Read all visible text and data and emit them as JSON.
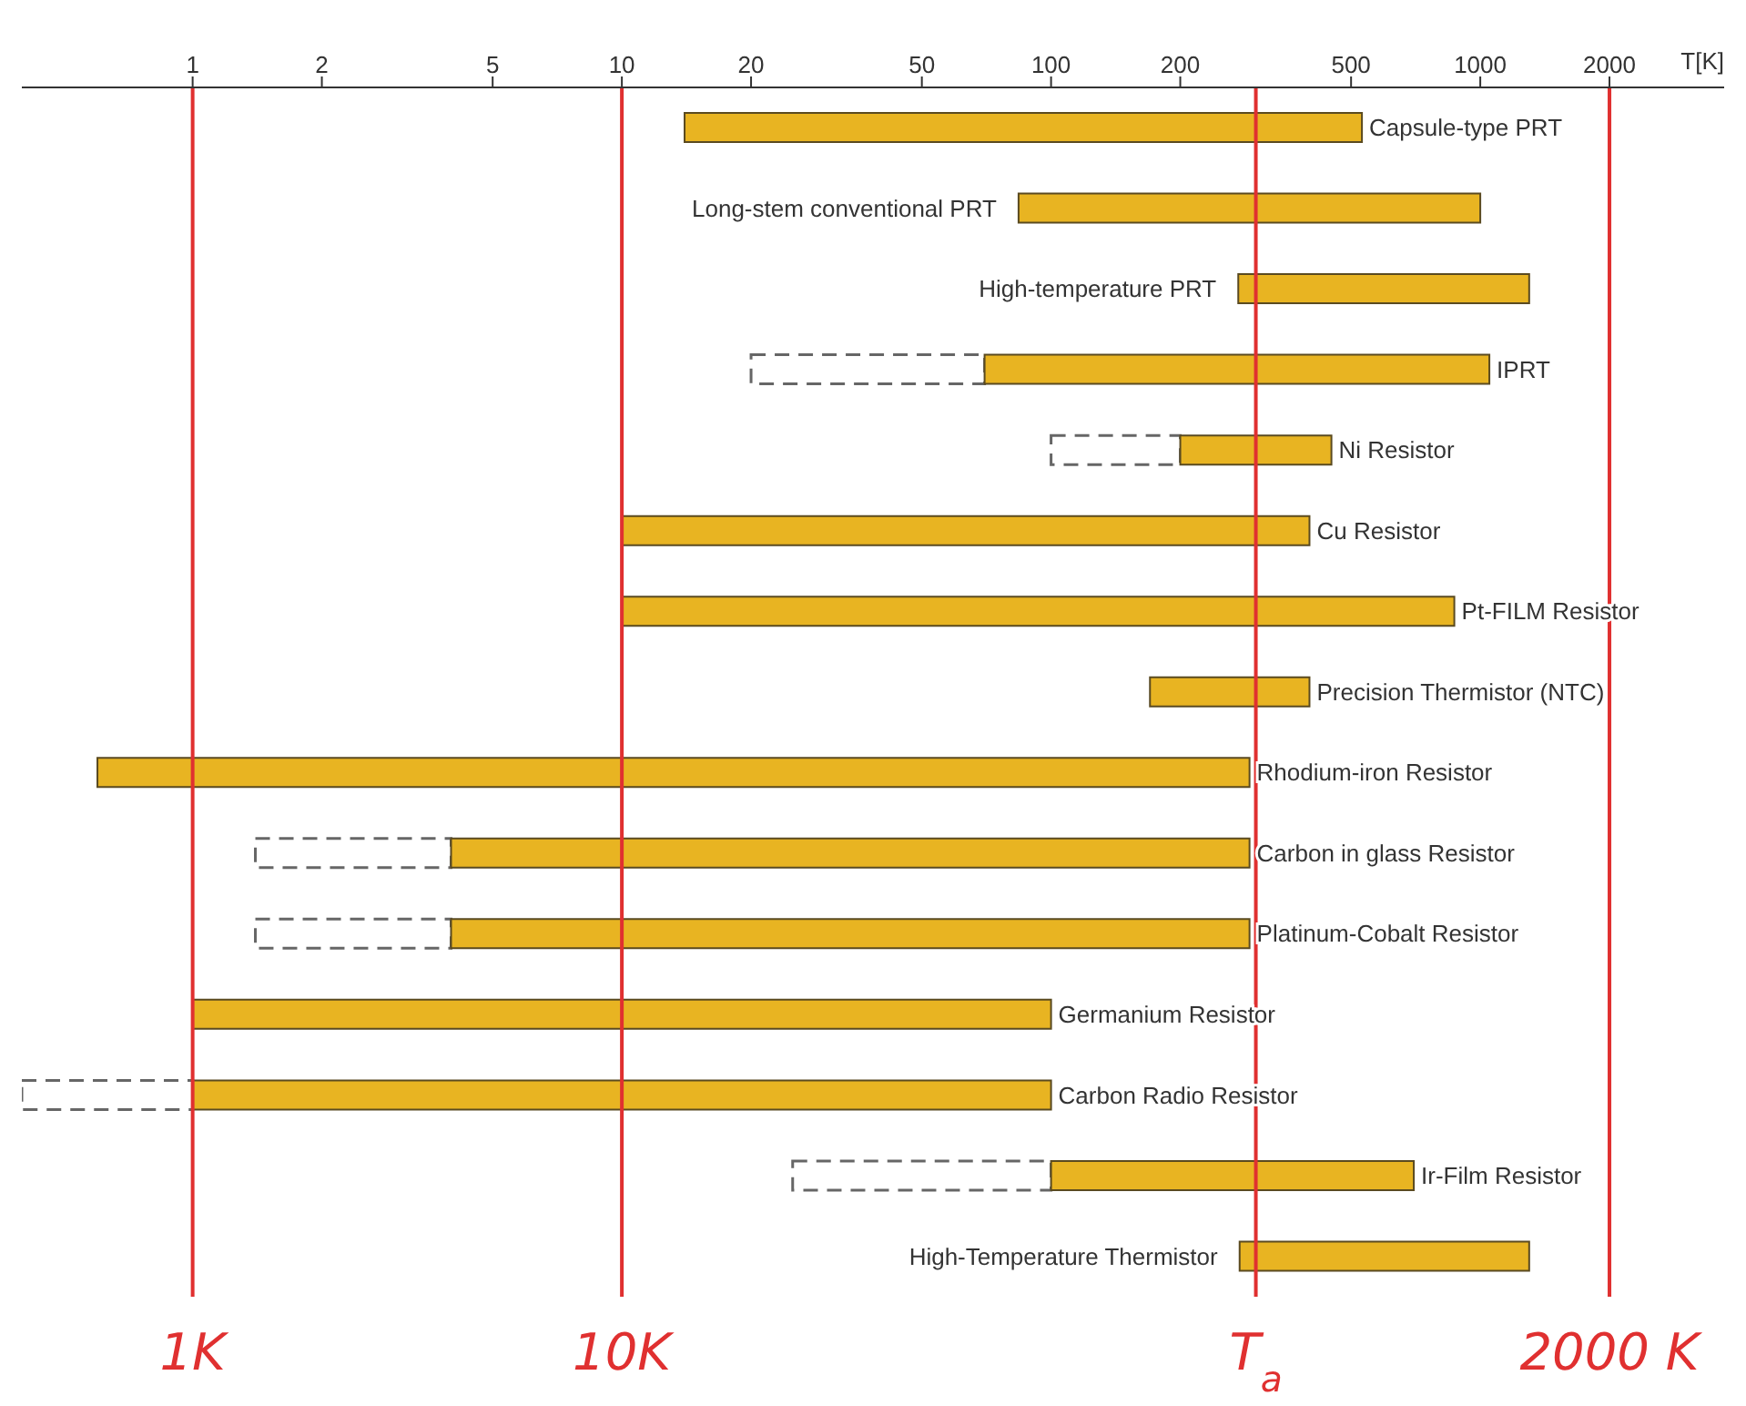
{
  "chart_data": {
    "type": "bar",
    "orientation": "horizontal",
    "log": "x",
    "xlabel": "T[K]",
    "categories": [
      "Capsule-type PRT",
      "Long-stem conventional PRT",
      "High-temperature PRT",
      "IPRT",
      "Ni Resistor",
      "Cu Resistor",
      "Pt-FILM Resistor",
      "Precision Thermistor (NTC)",
      "Rhodium-iron Resistor",
      "Carbon in glass Resistor",
      "Platinum-Cobalt Resistor",
      "Germanium Resistor",
      "Carbon Radio Resistor",
      "Ir-Film Resistor",
      "High-Temperature Thermistor"
    ],
    "series": [
      {
        "color": "#666666",
        "line_style": "dashed",
        "base": [
          null,
          null,
          null,
          20,
          100,
          null,
          null,
          null,
          null,
          1.4,
          1.4,
          null,
          0.4,
          25,
          null
        ],
        "values": [
          null,
          null,
          null,
          50,
          100,
          null,
          null,
          null,
          null,
          2.6,
          2.6,
          null,
          0.6,
          75,
          null
        ]
      },
      {
        "color": "#e8b422",
        "line_style": "solid",
        "base": [
          14,
          84,
          273,
          70,
          200,
          10,
          10,
          170,
          0.6,
          4,
          4,
          1,
          1,
          100,
          275
        ],
        "values": [
          516,
          916,
          1027,
          980,
          250,
          390,
          860,
          230,
          289.4,
          286,
          286,
          99,
          99,
          600,
          1025
        ]
      }
    ],
    "xlim": [
      0.4,
      3700
    ],
    "xticks": [
      1,
      2,
      5,
      10,
      20,
      50,
      100,
      200,
      500,
      1000,
      2000
    ],
    "ref_lines": [
      {
        "axis": "x",
        "value": 1,
        "label": "1K",
        "color": "#e03030"
      },
      {
        "axis": "x",
        "value": 10,
        "label": "10K",
        "color": "#e03030"
      },
      {
        "axis": "x",
        "value": 300,
        "label": "T$_{a}$",
        "color": "#e03030"
      },
      {
        "axis": "x",
        "value": 2000,
        "label": "2000 K",
        "color": "#e03030"
      }
    ],
    "grid": false,
    "legend": false
  }
}
